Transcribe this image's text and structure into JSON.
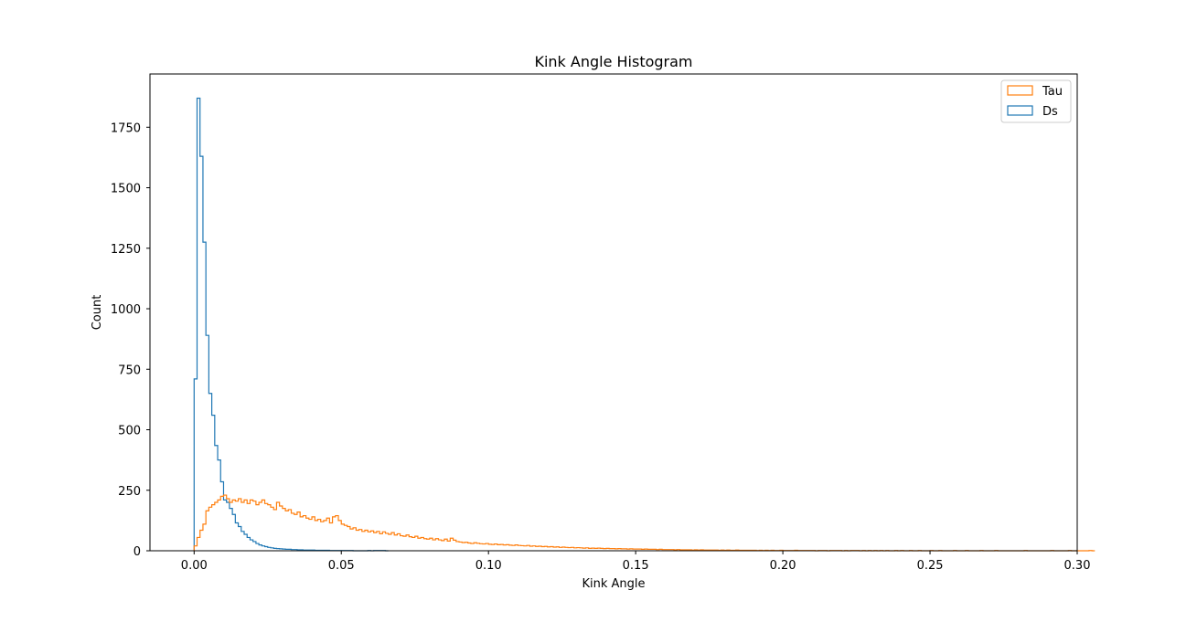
{
  "chart_data": {
    "type": "histogram",
    "title": "Kink Angle Histogram",
    "xlabel": "Kink Angle",
    "ylabel": "Count",
    "xlim": [
      -0.015,
      0.3
    ],
    "ylim": [
      0,
      1970
    ],
    "xticks": [
      0.0,
      0.05,
      0.1,
      0.15,
      0.2,
      0.25,
      0.3
    ],
    "xtick_labels": [
      "0.00",
      "0.05",
      "0.10",
      "0.15",
      "0.20",
      "0.25",
      "0.30"
    ],
    "yticks": [
      0,
      250,
      500,
      750,
      1000,
      1250,
      1500,
      1750
    ],
    "ytick_labels": [
      "0",
      "250",
      "500",
      "750",
      "1000",
      "1250",
      "1500",
      "1750"
    ],
    "grid": false,
    "legend_position": "top-right",
    "bin_width": 0.001,
    "series": [
      {
        "name": "Tau",
        "color": "#ff7f0e",
        "start": 0.0,
        "values": [
          20,
          55,
          85,
          110,
          165,
          180,
          190,
          200,
          210,
          225,
          230,
          215,
          200,
          210,
          205,
          215,
          200,
          210,
          195,
          210,
          205,
          190,
          200,
          210,
          195,
          190,
          180,
          170,
          200,
          185,
          175,
          165,
          170,
          155,
          150,
          160,
          140,
          145,
          135,
          130,
          140,
          125,
          130,
          120,
          125,
          135,
          115,
          140,
          145,
          125,
          110,
          105,
          100,
          90,
          95,
          85,
          88,
          80,
          85,
          78,
          82,
          75,
          80,
          70,
          78,
          72,
          68,
          75,
          65,
          70,
          62,
          60,
          65,
          58,
          55,
          60,
          52,
          55,
          50,
          48,
          52,
          45,
          50,
          45,
          42,
          48,
          40,
          52,
          44,
          38,
          36,
          34,
          35,
          32,
          30,
          33,
          31,
          29,
          28,
          30,
          27,
          26,
          28,
          25,
          26,
          24,
          25,
          23,
          22,
          24,
          22,
          21,
          20,
          22,
          19,
          20,
          18,
          19,
          17,
          18,
          16,
          17,
          15,
          16,
          14,
          15,
          14,
          13,
          14,
          12,
          13,
          12,
          11,
          12,
          10,
          11,
          10,
          11,
          10,
          9,
          10,
          9,
          9,
          8,
          9,
          8,
          8,
          7,
          8,
          7,
          7,
          7,
          6,
          7,
          6,
          6,
          6,
          5,
          6,
          5,
          5,
          5,
          5,
          4,
          5,
          4,
          4,
          4,
          4,
          3,
          4,
          3,
          4,
          3,
          3,
          3,
          3,
          3,
          2,
          3,
          2,
          3,
          2,
          2,
          3,
          2,
          2,
          2,
          2,
          2,
          2,
          1,
          2,
          1,
          2,
          1,
          2,
          1,
          1,
          2,
          1,
          1,
          1,
          1,
          2,
          1,
          1,
          1,
          1,
          1,
          1,
          0,
          1,
          1,
          1,
          0,
          1,
          1,
          1,
          1,
          0,
          1,
          0,
          1,
          1,
          1,
          0,
          1,
          0,
          1,
          0,
          1,
          0,
          1,
          0,
          1,
          0,
          0,
          1,
          0,
          1,
          0,
          0,
          1,
          0,
          0,
          1,
          0,
          0,
          0,
          1,
          0,
          0,
          1,
          0,
          0,
          0,
          0,
          1,
          0,
          0,
          0,
          1,
          0,
          0,
          0,
          0,
          1,
          0,
          0,
          0,
          0,
          1,
          0,
          0,
          0,
          0,
          0,
          0,
          0,
          0,
          0,
          1,
          0,
          0,
          0,
          0,
          0,
          0,
          0,
          0,
          1,
          0,
          0,
          0,
          0,
          0,
          1,
          0,
          0,
          0,
          0,
          0,
          0,
          1,
          0
        ]
      },
      {
        "name": "Ds",
        "color": "#1f77b4",
        "start": 0.0,
        "values": [
          710,
          1870,
          1630,
          1275,
          890,
          650,
          560,
          435,
          375,
          285,
          210,
          200,
          175,
          150,
          115,
          100,
          80,
          68,
          55,
          45,
          38,
          30,
          24,
          20,
          17,
          14,
          12,
          10,
          9,
          8,
          7,
          6,
          6,
          5,
          5,
          4,
          4,
          3,
          3,
          3,
          3,
          2,
          2,
          2,
          2,
          2,
          1,
          1,
          1,
          1,
          1,
          1,
          1,
          1,
          0,
          0,
          0,
          0,
          0,
          1,
          0,
          1,
          1,
          1,
          1,
          0
        ]
      }
    ]
  }
}
